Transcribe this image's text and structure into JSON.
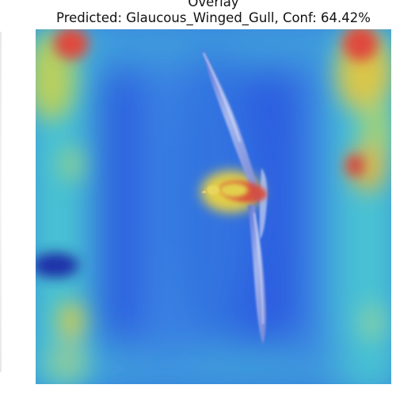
{
  "figure": {
    "title_top": "Overlay",
    "title_main": "Predicted: Glaucous_Winged_Gull, Conf: 64.42%"
  },
  "overlay": {
    "subject": "gull",
    "heatmap_colormap": "jet",
    "background_color": "#2f5fe3",
    "hot_color": "#e8433a",
    "warm_color": "#e2c84a",
    "cool_color": "#45c6d6"
  }
}
